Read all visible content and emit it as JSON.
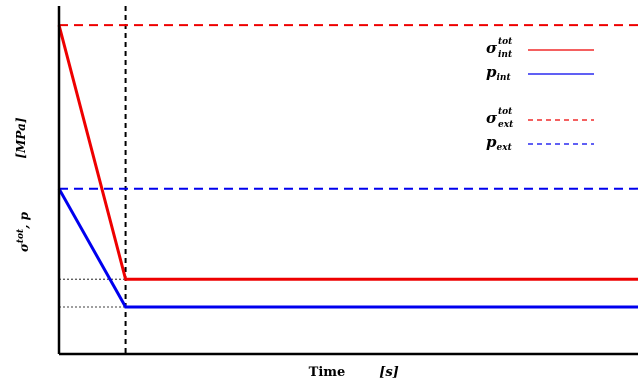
{
  "chart_data": {
    "type": "line",
    "xlabel": "Time",
    "xunit": "[s]",
    "ylabel_symbol": "σ",
    "ylabel_sup": "tot",
    "ylabel_rest": ", p",
    "yunit": "[MPa]",
    "grid": false,
    "legend_position": "top-right",
    "xlim": [
      0,
      100
    ],
    "ylim": [
      0,
      100
    ],
    "event_x": 11.5,
    "colors": {
      "red": "#ee0000",
      "blue": "#0000ee"
    },
    "series": [
      {
        "id": "sig_int",
        "sym": "σ",
        "sup": "tot",
        "sub": "int",
        "color": "#ee0000",
        "style": "solid",
        "x": [
          0,
          11.5,
          100
        ],
        "y": [
          94.5,
          21.5,
          21.5
        ]
      },
      {
        "id": "p_int",
        "sym": "p",
        "sup": "",
        "sub": "int",
        "color": "#0000ee",
        "style": "solid",
        "x": [
          0,
          11.5,
          100
        ],
        "y": [
          47.5,
          13.5,
          13.5
        ]
      },
      {
        "id": "sig_ext",
        "sym": "σ",
        "sup": "tot",
        "sub": "ext",
        "color": "#ee0000",
        "style": "dashed",
        "x": [
          0,
          100
        ],
        "y": [
          94.5,
          94.5
        ]
      },
      {
        "id": "p_ext",
        "sym": "p",
        "sup": "",
        "sub": "ext",
        "color": "#0000ee",
        "style": "dashed",
        "x": [
          0,
          100
        ],
        "y": [
          47.5,
          47.5
        ]
      }
    ],
    "reference_lines": [
      21.5,
      13.5
    ]
  }
}
